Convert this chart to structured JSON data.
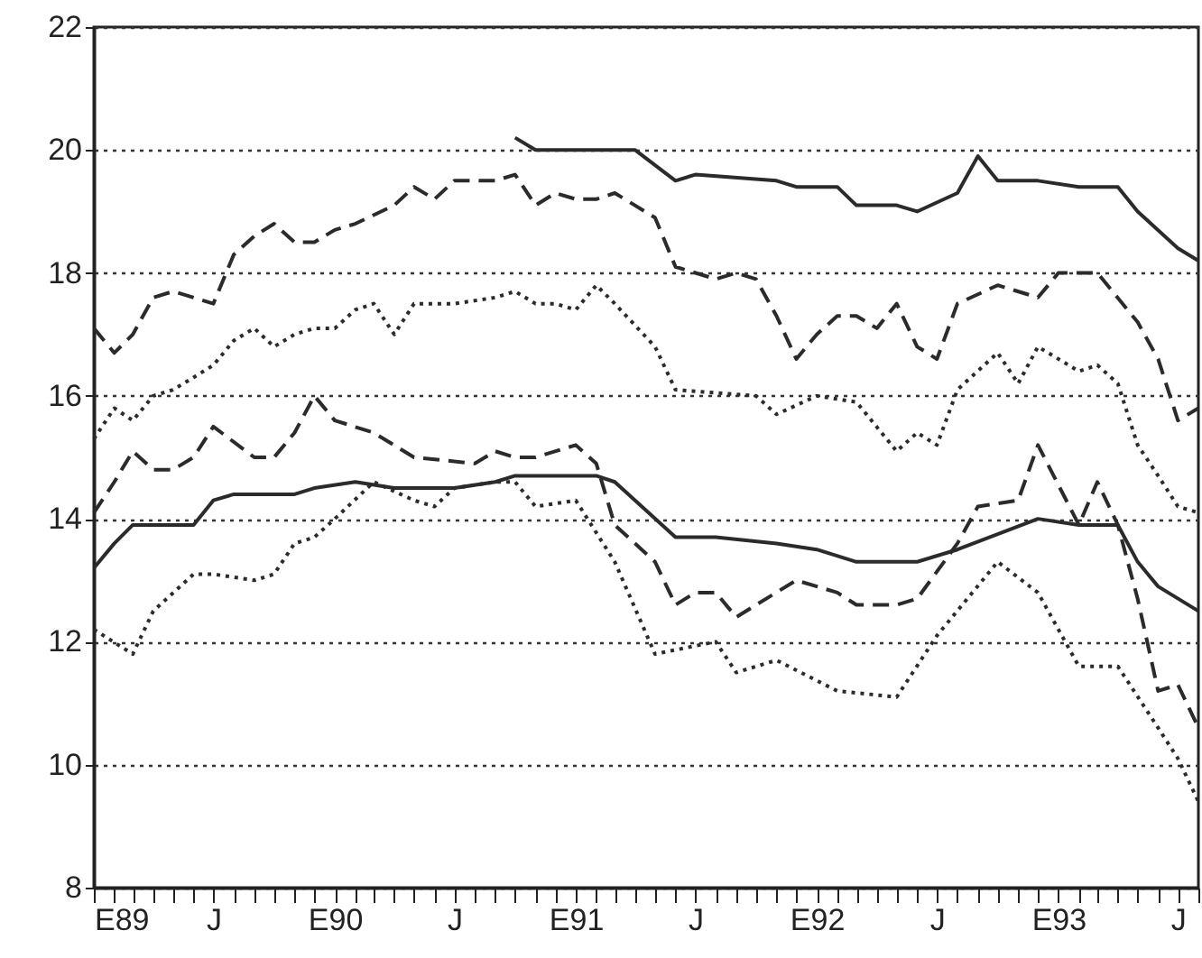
{
  "chart_data": {
    "type": "line",
    "xlim": [
      "1989-01",
      "1993-08"
    ],
    "ylim": [
      8,
      22
    ],
    "yticks": [
      8,
      10,
      12,
      14,
      16,
      18,
      20,
      22
    ],
    "grid": "y",
    "marker": "none",
    "xticks": [
      {
        "value": "1989-01",
        "label": "E89"
      },
      {
        "value": "1989-02",
        "label": null
      },
      {
        "value": "1989-03",
        "label": null
      },
      {
        "value": "1989-04",
        "label": null
      },
      {
        "value": "1989-05",
        "label": null
      },
      {
        "value": "1989-06",
        "label": null
      },
      {
        "value": "1989-07",
        "label": "J"
      },
      {
        "value": "1989-08",
        "label": null
      },
      {
        "value": "1989-09",
        "label": null
      },
      {
        "value": "1989-10",
        "label": null
      },
      {
        "value": "1989-11",
        "label": null
      },
      {
        "value": "1989-12",
        "label": null
      },
      {
        "value": "1990-01",
        "label": "E90"
      },
      {
        "value": "1990-02",
        "label": null
      },
      {
        "value": "1990-03",
        "label": null
      },
      {
        "value": "1990-04",
        "label": null
      },
      {
        "value": "1990-05",
        "label": null
      },
      {
        "value": "1990-06",
        "label": null
      },
      {
        "value": "1990-07",
        "label": "J"
      },
      {
        "value": "1990-08",
        "label": null
      },
      {
        "value": "1990-09",
        "label": null
      },
      {
        "value": "1990-10",
        "label": null
      },
      {
        "value": "1990-11",
        "label": null
      },
      {
        "value": "1990-12",
        "label": null
      },
      {
        "value": "1991-01",
        "label": "E91"
      },
      {
        "value": "1991-02",
        "label": null
      },
      {
        "value": "1991-03",
        "label": null
      },
      {
        "value": "1991-04",
        "label": null
      },
      {
        "value": "1991-05",
        "label": null
      },
      {
        "value": "1991-06",
        "label": null
      },
      {
        "value": "1991-07",
        "label": "J"
      },
      {
        "value": "1991-08",
        "label": null
      },
      {
        "value": "1991-09",
        "label": null
      },
      {
        "value": "1991-10",
        "label": null
      },
      {
        "value": "1991-11",
        "label": null
      },
      {
        "value": "1991-12",
        "label": null
      },
      {
        "value": "1992-01",
        "label": "E92"
      },
      {
        "value": "1992-02",
        "label": null
      },
      {
        "value": "1992-03",
        "label": null
      },
      {
        "value": "1992-04",
        "label": null
      },
      {
        "value": "1992-05",
        "label": null
      },
      {
        "value": "1992-06",
        "label": null
      },
      {
        "value": "1992-07",
        "label": "J"
      },
      {
        "value": "1992-08",
        "label": null
      },
      {
        "value": "1992-09",
        "label": null
      },
      {
        "value": "1992-10",
        "label": null
      },
      {
        "value": "1992-11",
        "label": null
      },
      {
        "value": "1992-12",
        "label": null
      },
      {
        "value": "1993-01",
        "label": "E93"
      },
      {
        "value": "1993-02",
        "label": null
      },
      {
        "value": "1993-03",
        "label": null
      },
      {
        "value": "1993-04",
        "label": null
      },
      {
        "value": "1993-05",
        "label": null
      },
      {
        "value": "1993-06",
        "label": null
      },
      {
        "value": "1993-07",
        "label": "J"
      },
      {
        "value": "1993-08",
        "label": null
      }
    ],
    "series": [
      {
        "color": "#2b2b2b",
        "line_style": "solid",
        "x": [
          "1990-10",
          "1990-11",
          "1991-04",
          "1991-06",
          "1991-07",
          "1991-11",
          "1991-12",
          "1992-02",
          "1992-03",
          "1992-05",
          "1992-06",
          "1992-08",
          "1992-09",
          "1992-10",
          "1992-12",
          "1993-02",
          "1993-04",
          "1993-05",
          "1993-07",
          "1993-08"
        ],
        "values": [
          20.2,
          20.0,
          20.0,
          19.5,
          19.6,
          19.5,
          19.4,
          19.4,
          19.1,
          19.1,
          19.0,
          19.3,
          19.9,
          19.5,
          19.5,
          19.4,
          19.4,
          19.0,
          18.4,
          18.2
        ]
      },
      {
        "color": "#2b2b2b",
        "line_style": "dashed",
        "x": [
          "1989-01",
          "1989-02",
          "1989-03",
          "1989-04",
          "1989-05",
          "1989-06",
          "1989-07",
          "1989-08",
          "1989-09",
          "1989-10",
          "1989-11",
          "1989-12",
          "1990-01",
          "1990-02",
          "1990-04",
          "1990-05",
          "1990-06",
          "1990-07",
          "1990-09",
          "1990-10",
          "1990-11",
          "1990-12",
          "1991-01",
          "1991-02",
          "1991-03",
          "1991-05",
          "1991-06",
          "1991-08",
          "1991-09",
          "1991-10",
          "1991-11",
          "1991-12",
          "1992-01",
          "1992-02",
          "1992-03",
          "1992-04",
          "1992-05",
          "1992-06",
          "1992-07",
          "1992-08",
          "1992-10",
          "1992-12",
          "1993-01",
          "1993-02",
          "1993-03",
          "1993-05",
          "1993-06",
          "1993-07",
          "1993-08"
        ],
        "values": [
          17.1,
          16.7,
          17.0,
          17.6,
          17.7,
          17.6,
          17.5,
          18.3,
          18.6,
          18.8,
          18.5,
          18.5,
          18.7,
          18.8,
          19.1,
          19.4,
          19.2,
          19.5,
          19.5,
          19.6,
          19.1,
          19.3,
          19.2,
          19.2,
          19.3,
          18.9,
          18.1,
          17.9,
          18.0,
          17.9,
          17.3,
          16.6,
          17.0,
          17.3,
          17.3,
          17.1,
          17.5,
          16.8,
          16.6,
          17.5,
          17.8,
          17.6,
          18.0,
          18.0,
          18.0,
          17.2,
          16.6,
          15.6,
          15.8
        ]
      },
      {
        "color": "#2b2b2b",
        "line_style": "dotted",
        "x": [
          "1989-01",
          "1989-02",
          "1989-03",
          "1989-04",
          "1989-05",
          "1989-06",
          "1989-07",
          "1989-08",
          "1989-09",
          "1989-10",
          "1989-11",
          "1989-12",
          "1990-01",
          "1990-02",
          "1990-03",
          "1990-04",
          "1990-05",
          "1990-07",
          "1990-09",
          "1990-10",
          "1990-11",
          "1990-12",
          "1991-01",
          "1991-02",
          "1991-03",
          "1991-05",
          "1991-06",
          "1991-10",
          "1991-11",
          "1992-01",
          "1992-03",
          "1992-05",
          "1992-06",
          "1992-07",
          "1992-08",
          "1992-10",
          "1992-11",
          "1992-12",
          "1993-02",
          "1993-03",
          "1993-04",
          "1993-05",
          "1993-06",
          "1993-07",
          "1993-08"
        ],
        "values": [
          15.3,
          15.8,
          15.6,
          16.0,
          16.1,
          16.3,
          16.5,
          16.9,
          17.1,
          16.8,
          17.0,
          17.1,
          17.1,
          17.4,
          17.5,
          17.0,
          17.5,
          17.5,
          17.6,
          17.7,
          17.5,
          17.5,
          17.4,
          17.8,
          17.5,
          16.8,
          16.1,
          16.0,
          15.7,
          16.0,
          15.9,
          15.1,
          15.4,
          15.2,
          16.1,
          16.7,
          16.2,
          16.8,
          16.4,
          16.5,
          16.2,
          15.2,
          14.7,
          14.2,
          14.1
        ]
      },
      {
        "color": "#2b2b2b",
        "line_style": "dashed",
        "x": [
          "1989-01",
          "1989-02",
          "1989-03",
          "1989-04",
          "1989-05",
          "1989-06",
          "1989-07",
          "1989-09",
          "1989-10",
          "1989-11",
          "1989-12",
          "1990-01",
          "1990-03",
          "1990-05",
          "1990-08",
          "1990-09",
          "1990-10",
          "1990-11",
          "1991-01",
          "1991-02",
          "1991-03",
          "1991-05",
          "1991-06",
          "1991-07",
          "1991-08",
          "1991-09",
          "1991-10",
          "1991-12",
          "1992-02",
          "1992-03",
          "1992-05",
          "1992-06",
          "1992-08",
          "1992-09",
          "1992-11",
          "1992-12",
          "1993-02",
          "1993-03",
          "1993-04",
          "1993-05",
          "1993-06",
          "1993-07",
          "1993-08"
        ],
        "values": [
          14.1,
          14.6,
          15.1,
          14.8,
          14.8,
          15.0,
          15.5,
          15.0,
          15.0,
          15.4,
          16.0,
          15.6,
          15.4,
          15.0,
          14.9,
          15.1,
          15.0,
          15.0,
          15.2,
          14.9,
          13.9,
          13.3,
          12.6,
          12.8,
          12.8,
          12.4,
          12.6,
          13.0,
          12.8,
          12.6,
          12.6,
          12.7,
          13.6,
          14.2,
          14.3,
          15.2,
          13.9,
          14.6,
          13.9,
          12.7,
          11.2,
          11.3,
          10.6
        ]
      },
      {
        "color": "#2b2b2b",
        "line_style": "solid",
        "x": [
          "1989-01",
          "1989-02",
          "1989-03",
          "1989-06",
          "1989-07",
          "1989-08",
          "1989-11",
          "1989-12",
          "1990-02",
          "1990-04",
          "1990-07",
          "1990-09",
          "1990-10",
          "1991-02",
          "1991-03",
          "1991-06",
          "1991-08",
          "1991-11",
          "1992-01",
          "1992-03",
          "1992-06",
          "1992-08",
          "1992-12",
          "1993-02",
          "1993-04",
          "1993-05",
          "1993-06",
          "1993-08"
        ],
        "values": [
          13.2,
          13.6,
          13.9,
          13.9,
          14.3,
          14.4,
          14.4,
          14.5,
          14.6,
          14.5,
          14.5,
          14.6,
          14.7,
          14.7,
          14.6,
          13.7,
          13.7,
          13.6,
          13.5,
          13.3,
          13.3,
          13.5,
          14.0,
          13.9,
          13.9,
          13.3,
          12.9,
          12.5
        ]
      },
      {
        "color": "#2b2b2b",
        "line_style": "dotted",
        "x": [
          "1989-01",
          "1989-03",
          "1989-04",
          "1989-06",
          "1989-07",
          "1989-09",
          "1989-10",
          "1989-11",
          "1989-12",
          "1990-01",
          "1990-03",
          "1990-05",
          "1990-06",
          "1990-07",
          "1990-09",
          "1990-10",
          "1990-11",
          "1991-01",
          "1991-03",
          "1991-05",
          "1991-08",
          "1991-09",
          "1991-11",
          "1992-02",
          "1992-05",
          "1992-07",
          "1992-10",
          "1992-12",
          "1993-02",
          "1993-04",
          "1993-06",
          "1993-07",
          "1993-08"
        ],
        "values": [
          12.2,
          11.8,
          12.5,
          13.1,
          13.1,
          13.0,
          13.1,
          13.6,
          13.7,
          14.0,
          14.6,
          14.3,
          14.2,
          14.5,
          14.6,
          14.6,
          14.2,
          14.3,
          13.3,
          11.8,
          12.0,
          11.5,
          11.7,
          11.2,
          11.1,
          12.1,
          13.3,
          12.8,
          11.6,
          11.6,
          10.6,
          10.1,
          9.4
        ]
      }
    ]
  }
}
